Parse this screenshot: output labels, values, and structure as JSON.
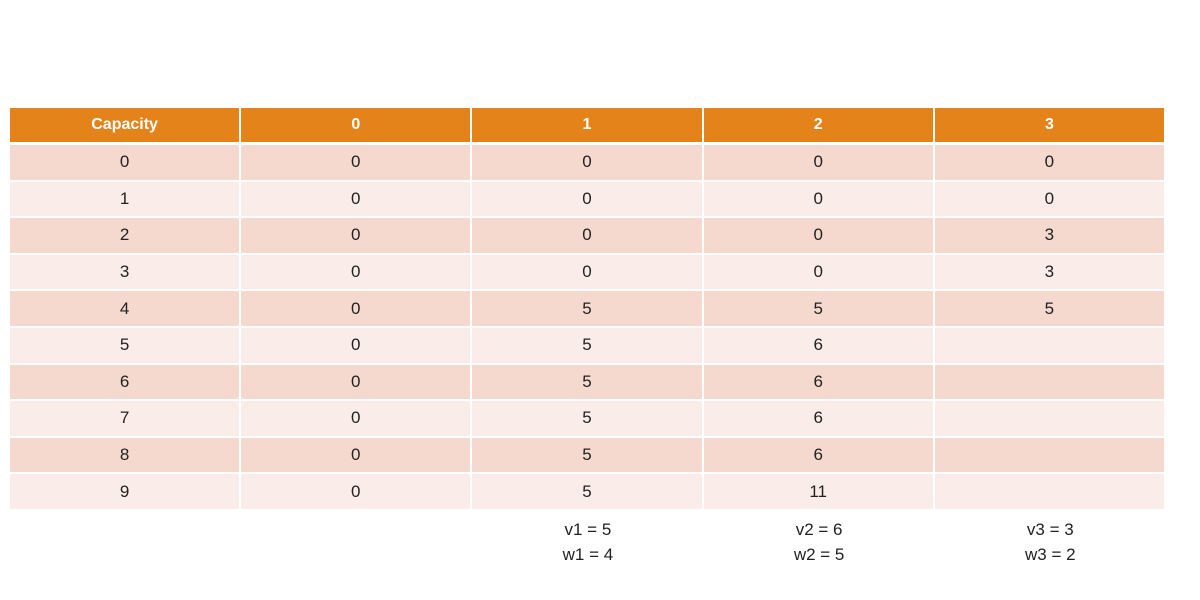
{
  "table": {
    "header": [
      "Capacity",
      "0",
      "1",
      "2",
      "3"
    ],
    "rows": [
      [
        0,
        0,
        0,
        0,
        0
      ],
      [
        1,
        0,
        0,
        0,
        0
      ],
      [
        2,
        0,
        0,
        0,
        3
      ],
      [
        3,
        0,
        0,
        0,
        3
      ],
      [
        4,
        0,
        5,
        5,
        5
      ],
      [
        5,
        0,
        5,
        6,
        null
      ],
      [
        6,
        0,
        5,
        6,
        null
      ],
      [
        7,
        0,
        5,
        6,
        null
      ],
      [
        8,
        0,
        5,
        6,
        null
      ],
      [
        9,
        0,
        5,
        11,
        null
      ]
    ]
  },
  "notes": [
    {
      "v": "v1 = 5",
      "w": "w1 = 4"
    },
    {
      "v": "v2 = 6",
      "w": "w2 = 5"
    },
    {
      "v": "v3 = 3",
      "w": "w3 = 2"
    }
  ]
}
